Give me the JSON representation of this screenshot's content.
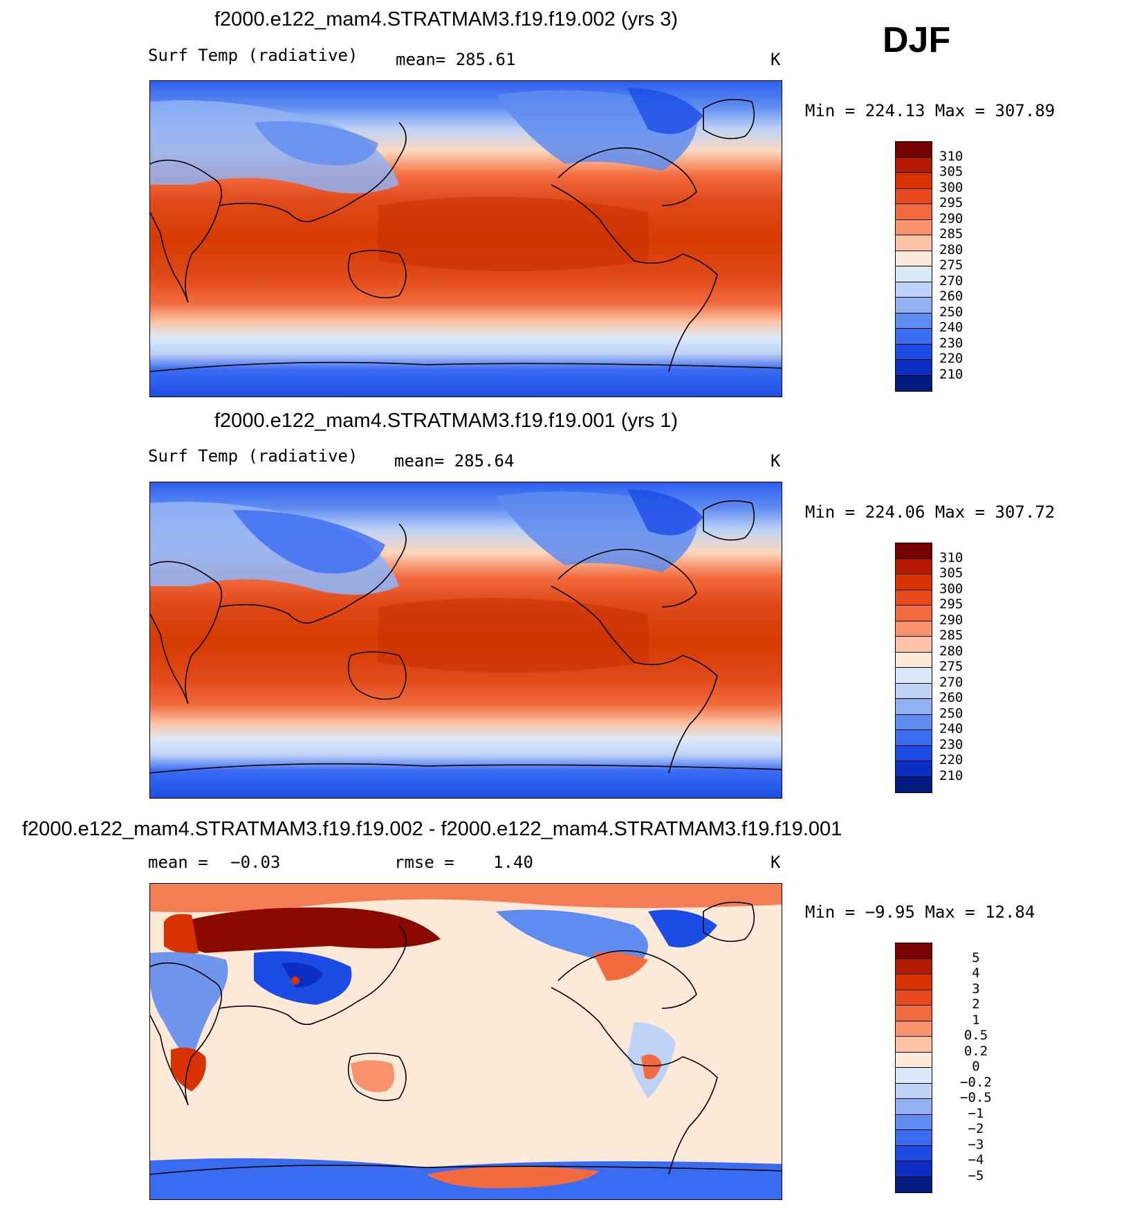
{
  "season": "DJF",
  "panels": [
    {
      "title": "f2000.e122_mam4.STRATMAM3.f19.f19.002 (yrs 3)",
      "variable": "Surf Temp (radiative)",
      "stat_label": "mean=",
      "stat_value": "285.61",
      "units": "K",
      "minmax": "Min = 224.13 Max = 307.89",
      "colorbar": {
        "labels": [
          "310",
          "305",
          "300",
          "295",
          "290",
          "285",
          "280",
          "275",
          "270",
          "260",
          "250",
          "240",
          "230",
          "220",
          "210"
        ],
        "colors": [
          "#7a0000",
          "#b51a00",
          "#d83200",
          "#e8491b",
          "#f26a3d",
          "#f7926c",
          "#fbc3a4",
          "#fde9d8",
          "#dce9f8",
          "#bdd2f6",
          "#91b2f2",
          "#5f8cf0",
          "#3a6cf2",
          "#1c4ce5",
          "#0a2fc2",
          "#001a80"
        ]
      }
    },
    {
      "title": "f2000.e122_mam4.STRATMAM3.f19.f19.001 (yrs 1)",
      "variable": "Surf Temp (radiative)",
      "stat_label": "mean=",
      "stat_value": "285.64",
      "units": "K",
      "minmax": "Min = 224.06 Max = 307.72",
      "colorbar": {
        "labels": [
          "310",
          "305",
          "300",
          "295",
          "290",
          "285",
          "280",
          "275",
          "270",
          "260",
          "250",
          "240",
          "230",
          "220",
          "210"
        ],
        "colors": [
          "#7a0000",
          "#b51a00",
          "#d83200",
          "#e8491b",
          "#f26a3d",
          "#f7926c",
          "#fbc3a4",
          "#fde9d8",
          "#dce9f8",
          "#bdd2f6",
          "#91b2f2",
          "#5f8cf0",
          "#3a6cf2",
          "#1c4ce5",
          "#0a2fc2",
          "#001a80"
        ]
      }
    },
    {
      "title": "f2000.e122_mam4.STRATMAM3.f19.f19.002 - f2000.e122_mam4.STRATMAM3.f19.f19.001",
      "mean_label": "mean =",
      "mean_value": "−0.03",
      "rmse_label": "rmse =",
      "rmse_value": "1.40",
      "units": "K",
      "minmax": "Min = −9.95 Max = 12.84",
      "colorbar": {
        "labels": [
          "5",
          "4",
          "3",
          "2",
          "1",
          "0.5",
          "0.2",
          "0",
          "−0.2",
          "−0.5",
          "−1",
          "−2",
          "−3",
          "−4",
          "−5"
        ],
        "colors": [
          "#7a0000",
          "#b51a00",
          "#d83200",
          "#e8491b",
          "#f26a3d",
          "#f7926c",
          "#fbc3a4",
          "#fde9d8",
          "#dce9f8",
          "#bdd2f6",
          "#91b2f2",
          "#5f8cf0",
          "#3a6cf2",
          "#1c4ce5",
          "#0a2fc2",
          "#001a80"
        ]
      }
    }
  ]
}
